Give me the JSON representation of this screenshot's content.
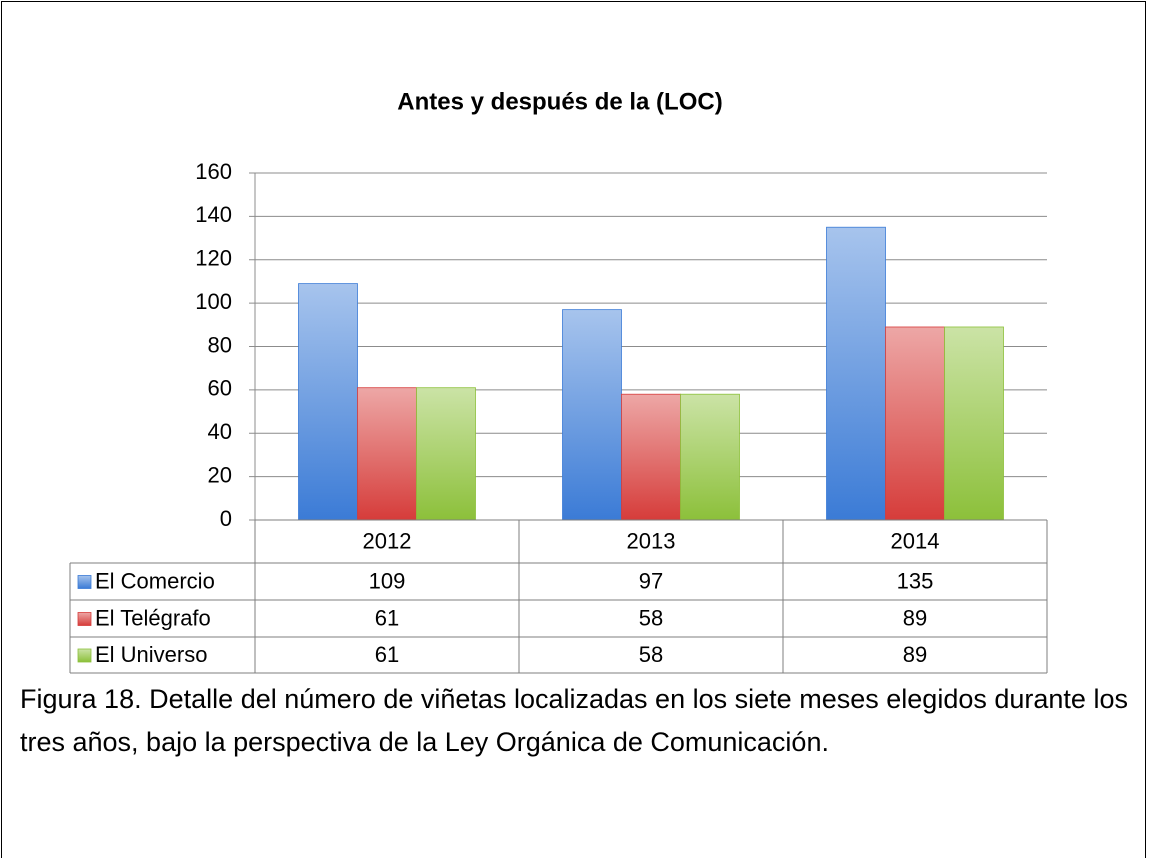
{
  "chart_data": {
    "type": "bar",
    "title": "Antes y después de la (LOC)",
    "categories": [
      "2012",
      "2013",
      "2014"
    ],
    "series": [
      {
        "name": "El Comercio",
        "color": "#3b7bd6",
        "values": [
          109,
          97,
          135
        ]
      },
      {
        "name": "El Telégrafo",
        "color": "#d63c3a",
        "values": [
          61,
          58,
          89
        ]
      },
      {
        "name": "El Universo",
        "color": "#8cc03a",
        "values": [
          61,
          58,
          89
        ]
      }
    ],
    "ylim": [
      0,
      160
    ],
    "yticks": [
      0,
      20,
      40,
      60,
      80,
      100,
      120,
      140,
      160
    ],
    "grid": true
  },
  "caption": "Figura 18. Detalle del número de viñetas localizadas en los siete meses elegidos durante los tres años, bajo la perspectiva de la Ley Orgánica de Comunicación."
}
